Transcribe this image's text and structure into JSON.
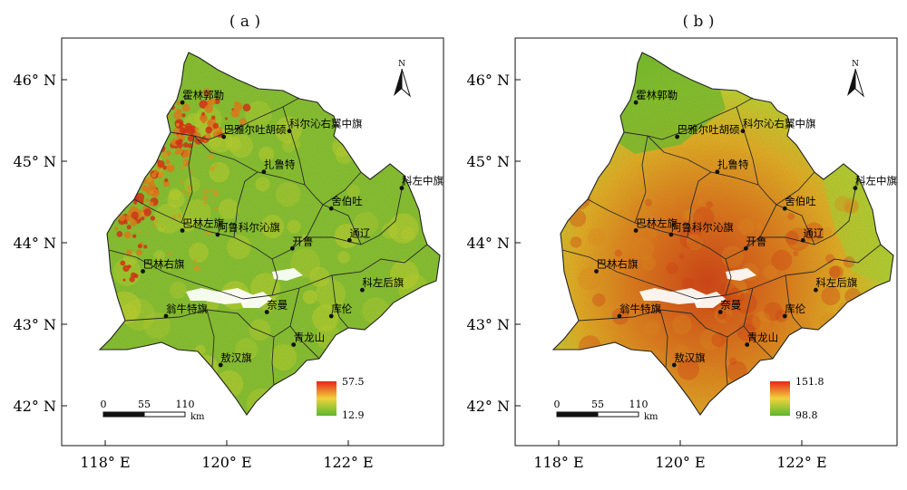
{
  "panels": [
    {
      "id": "a",
      "title": "( a )",
      "legend": {
        "max": "57.5",
        "min": "12.9",
        "high": "#e8251a",
        "mid": "#f0d23c",
        "low": "#5ab82e"
      },
      "fill": "a"
    },
    {
      "id": "b",
      "title": "( b )",
      "legend": {
        "max": "151.8",
        "min": "98.8",
        "high": "#e8251a",
        "mid": "#f0d23c",
        "low": "#5ab82e"
      },
      "fill": "b"
    }
  ],
  "lat_labels": [
    "46° N",
    "45° N",
    "44° N",
    "43° N",
    "42° N"
  ],
  "lon_labels": [
    "118° E",
    "120° E",
    "122° E"
  ],
  "scale_bar": {
    "ticks": [
      "0",
      "55",
      "110"
    ],
    "unit": "km"
  },
  "north_label": "N",
  "places": [
    {
      "name": "霍林郭勒",
      "lon": 119.27,
      "lat": 45.72
    },
    {
      "name": "巴雅尔吐胡硕",
      "lon": 119.95,
      "lat": 45.3
    },
    {
      "name": "科尔沁右翼中旗",
      "lon": 121.03,
      "lat": 45.37
    },
    {
      "name": "扎鲁特",
      "lon": 120.61,
      "lat": 44.87
    },
    {
      "name": "科左中旗",
      "lon": 122.88,
      "lat": 44.67
    },
    {
      "name": "舍伯吐",
      "lon": 121.72,
      "lat": 44.42
    },
    {
      "name": "巴林左旗",
      "lon": 119.27,
      "lat": 44.15
    },
    {
      "name": "阿鲁科尔沁旗",
      "lon": 119.85,
      "lat": 44.1
    },
    {
      "name": "通辽",
      "lon": 122.02,
      "lat": 44.03
    },
    {
      "name": "开鲁",
      "lon": 121.08,
      "lat": 43.93
    },
    {
      "name": "巴林右旗",
      "lon": 118.62,
      "lat": 43.65
    },
    {
      "name": "科左后旗",
      "lon": 122.23,
      "lat": 43.42
    },
    {
      "name": "翁牛特旗",
      "lon": 119.0,
      "lat": 43.1
    },
    {
      "name": "奈曼",
      "lon": 120.66,
      "lat": 43.15
    },
    {
      "name": "库伦",
      "lon": 121.72,
      "lat": 43.1
    },
    {
      "name": "青龙山",
      "lon": 121.1,
      "lat": 42.75
    },
    {
      "name": "敖汉旗",
      "lon": 119.9,
      "lat": 42.5
    }
  ]
}
